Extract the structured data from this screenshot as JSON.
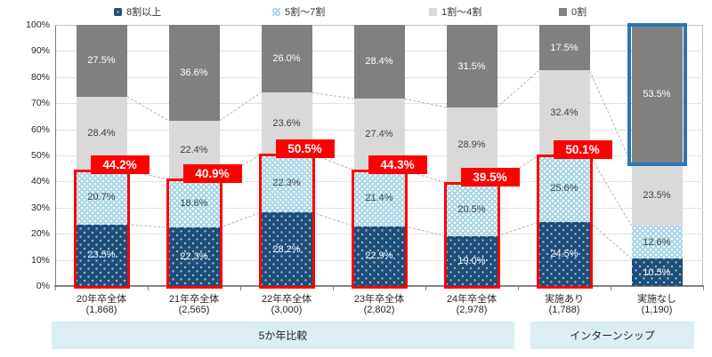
{
  "legend": {
    "items": [
      {
        "label": "8割以上",
        "swatch": "navy"
      },
      {
        "label": "5割〜7割",
        "swatch": "lightblue"
      },
      {
        "label": "1割〜4割",
        "swatch": "lightgray"
      },
      {
        "label": "0割",
        "swatch": "darkgray"
      }
    ]
  },
  "colors": {
    "navy": "#1F4E79",
    "lightblue": "#A9D6E5",
    "lightgray": "#D9D9D9",
    "darkgray": "#808080",
    "red_accent": "#FF0000",
    "blue_highlight": "#2E75B6",
    "band_background": "#DAEEF3",
    "gridline": "#C8C8C8",
    "connector": "#B7B3B3"
  },
  "chart_data": {
    "type": "bar",
    "subtype": "stacked-100-percent",
    "title": "",
    "xlabel": "",
    "ylabel": "",
    "ylim": [
      0,
      100
    ],
    "yticks": [
      0,
      10,
      20,
      30,
      40,
      50,
      60,
      70,
      80,
      90,
      100
    ],
    "ytick_suffix": "%",
    "grid": "horizontal-dotted",
    "legend_position": "top",
    "series_names": [
      "8割以上",
      "5割〜7割",
      "1割〜4割",
      "0割"
    ],
    "bars": [
      {
        "category": "20年卒全体",
        "n_label": "(1,868)",
        "values": [
          23.5,
          20.7,
          28.4,
          27.5
        ],
        "sum_label": "44.2%",
        "highlight": "red-bottom2"
      },
      {
        "category": "21年卒全体",
        "n_label": "(2,565)",
        "values": [
          22.3,
          18.6,
          22.4,
          36.6
        ],
        "sum_label": "40.9%",
        "highlight": "red-bottom2"
      },
      {
        "category": "22年卒全体",
        "n_label": "(3,000)",
        "values": [
          28.2,
          22.3,
          23.6,
          26.0
        ],
        "sum_label": "50.5%",
        "highlight": "red-bottom2"
      },
      {
        "category": "23年卒全体",
        "n_label": "(2,802)",
        "values": [
          22.9,
          21.4,
          27.4,
          28.4
        ],
        "sum_label": "44.3%",
        "highlight": "red-bottom2"
      },
      {
        "category": "24年卒全体",
        "n_label": "(2,978)",
        "values": [
          19.0,
          20.5,
          28.9,
          31.5
        ],
        "sum_label": "39.5%",
        "highlight": "red-bottom2"
      },
      {
        "category": "実施あり",
        "n_label": "(1,788)",
        "values": [
          24.5,
          25.6,
          32.4,
          17.5
        ],
        "sum_label": "50.1%",
        "highlight": "red-bottom2"
      },
      {
        "category": "実施なし",
        "n_label": "(1,190)",
        "values": [
          10.5,
          12.6,
          23.5,
          53.5
        ],
        "sum_label": null,
        "highlight": "blue-top-segment"
      }
    ],
    "groups": [
      {
        "label": "5か年比較",
        "bar_start": 0,
        "bar_end": 4
      },
      {
        "label": "インターンシップ",
        "bar_start": 5,
        "bar_end": 6
      }
    ]
  }
}
